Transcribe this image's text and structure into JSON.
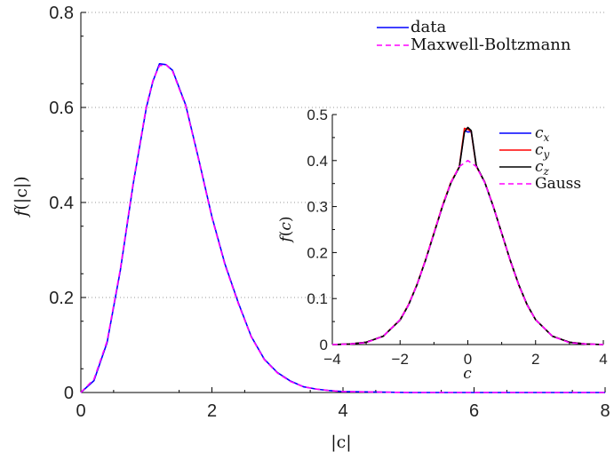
{
  "chart_data": [
    {
      "type": "line",
      "xlabel": "|c|",
      "ylabel": "f(|c|)",
      "xlim": [
        0,
        8
      ],
      "ylim": [
        0,
        0.8
      ],
      "xticks": [
        "0",
        "2",
        "4",
        "6",
        "8"
      ],
      "yticks": [
        "0",
        "0.2",
        "0.4",
        "0.6",
        "0.8"
      ],
      "grid": "horizontal dotted",
      "legend_placement": "top-right",
      "series": [
        {
          "name": "data",
          "color": "#0000ff",
          "style": "solid",
          "x": [
            0,
            0.2,
            0.4,
            0.6,
            0.8,
            1.0,
            1.1,
            1.2,
            1.3,
            1.4,
            1.6,
            1.8,
            2.0,
            2.2,
            2.4,
            2.6,
            2.8,
            3.0,
            3.2,
            3.4,
            3.6,
            3.8,
            4.0,
            4.5,
            5.0,
            6.0,
            7.0,
            8.0
          ],
          "y": [
            0,
            0.025,
            0.105,
            0.255,
            0.44,
            0.6,
            0.655,
            0.692,
            0.69,
            0.678,
            0.605,
            0.49,
            0.37,
            0.27,
            0.19,
            0.118,
            0.07,
            0.042,
            0.024,
            0.012,
            0.007,
            0.004,
            0.002,
            0.001,
            0,
            0,
            0,
            0
          ]
        },
        {
          "name": "Maxwell-Boltzmann",
          "color": "#ff00ff",
          "style": "dashed",
          "x": [
            0,
            0.2,
            0.4,
            0.6,
            0.8,
            1.0,
            1.1,
            1.2,
            1.3,
            1.4,
            1.6,
            1.8,
            2.0,
            2.2,
            2.4,
            2.6,
            2.8,
            3.0,
            3.2,
            3.4,
            3.6,
            3.8,
            4.0,
            4.5,
            5.0,
            6.0,
            7.0,
            8.0
          ],
          "y": [
            0,
            0.028,
            0.108,
            0.258,
            0.443,
            0.603,
            0.657,
            0.688,
            0.69,
            0.676,
            0.603,
            0.488,
            0.368,
            0.268,
            0.188,
            0.117,
            0.069,
            0.041,
            0.023,
            0.012,
            0.007,
            0.004,
            0.002,
            0.001,
            0,
            0,
            0,
            0
          ]
        }
      ]
    },
    {
      "type": "line",
      "xlabel": "c",
      "ylabel": "f(c)",
      "xlim": [
        -4,
        4
      ],
      "ylim": [
        0,
        0.5
      ],
      "xticks": [
        "−4",
        "−2",
        "0",
        "2",
        "4"
      ],
      "yticks": [
        "0",
        "0.1",
        "0.2",
        "0.3",
        "0.4",
        "0.5"
      ],
      "legend_placement": "top-right",
      "series": [
        {
          "name_base": "c",
          "name_sub": "x",
          "color": "#0000ff",
          "style": "solid",
          "x": [
            -4,
            -3.5,
            -3,
            -2.5,
            -2,
            -1.75,
            -1.5,
            -1.25,
            -1,
            -0.75,
            -0.5,
            -0.25,
            -0.1,
            0,
            0.1,
            0.25,
            0.5,
            0.75,
            1,
            1.25,
            1.5,
            1.75,
            2,
            2.5,
            3,
            3.5,
            4
          ],
          "y": [
            0,
            0.001,
            0.005,
            0.018,
            0.054,
            0.086,
            0.13,
            0.183,
            0.242,
            0.301,
            0.352,
            0.386,
            0.465,
            0.462,
            0.463,
            0.388,
            0.352,
            0.3,
            0.242,
            0.183,
            0.13,
            0.086,
            0.054,
            0.018,
            0.005,
            0.001,
            0
          ]
        },
        {
          "name_base": "c",
          "name_sub": "y",
          "color": "#ff0000",
          "style": "solid",
          "x": [
            -4,
            -3.5,
            -3,
            -2.5,
            -2,
            -1.75,
            -1.5,
            -1.25,
            -1,
            -0.75,
            -0.5,
            -0.25,
            -0.1,
            0,
            0.1,
            0.25,
            0.5,
            0.75,
            1,
            1.25,
            1.5,
            1.75,
            2,
            2.5,
            3,
            3.5,
            4
          ],
          "y": [
            0,
            0.001,
            0.005,
            0.018,
            0.054,
            0.087,
            0.131,
            0.184,
            0.243,
            0.302,
            0.353,
            0.387,
            0.47,
            0.468,
            0.463,
            0.387,
            0.353,
            0.301,
            0.242,
            0.183,
            0.13,
            0.086,
            0.054,
            0.018,
            0.005,
            0.001,
            0
          ]
        },
        {
          "name_base": "c",
          "name_sub": "z",
          "color": "#000000",
          "style": "solid",
          "x": [
            -4,
            -3.5,
            -3,
            -2.5,
            -2,
            -1.75,
            -1.5,
            -1.25,
            -1,
            -0.75,
            -0.5,
            -0.25,
            -0.1,
            0,
            0.1,
            0.25,
            0.5,
            0.75,
            1,
            1.25,
            1.5,
            1.75,
            2,
            2.5,
            3,
            3.5,
            4
          ],
          "y": [
            0,
            0.001,
            0.005,
            0.018,
            0.053,
            0.086,
            0.13,
            0.183,
            0.241,
            0.3,
            0.351,
            0.386,
            0.462,
            0.472,
            0.465,
            0.389,
            0.353,
            0.301,
            0.242,
            0.184,
            0.131,
            0.087,
            0.054,
            0.018,
            0.005,
            0.001,
            0
          ]
        },
        {
          "name": "Gauss",
          "color": "#ff00ff",
          "style": "dashed",
          "x": [
            -4,
            -3.5,
            -3,
            -2.5,
            -2,
            -1.75,
            -1.5,
            -1.25,
            -1,
            -0.75,
            -0.5,
            -0.25,
            0,
            0.25,
            0.5,
            0.75,
            1,
            1.25,
            1.5,
            1.75,
            2,
            2.5,
            3,
            3.5,
            4
          ],
          "y": [
            0.0001,
            0.001,
            0.004,
            0.018,
            0.054,
            0.086,
            0.13,
            0.183,
            0.242,
            0.301,
            0.352,
            0.387,
            0.4,
            0.387,
            0.352,
            0.301,
            0.242,
            0.183,
            0.13,
            0.086,
            0.054,
            0.018,
            0.004,
            0.001,
            0.0001
          ]
        }
      ]
    }
  ]
}
